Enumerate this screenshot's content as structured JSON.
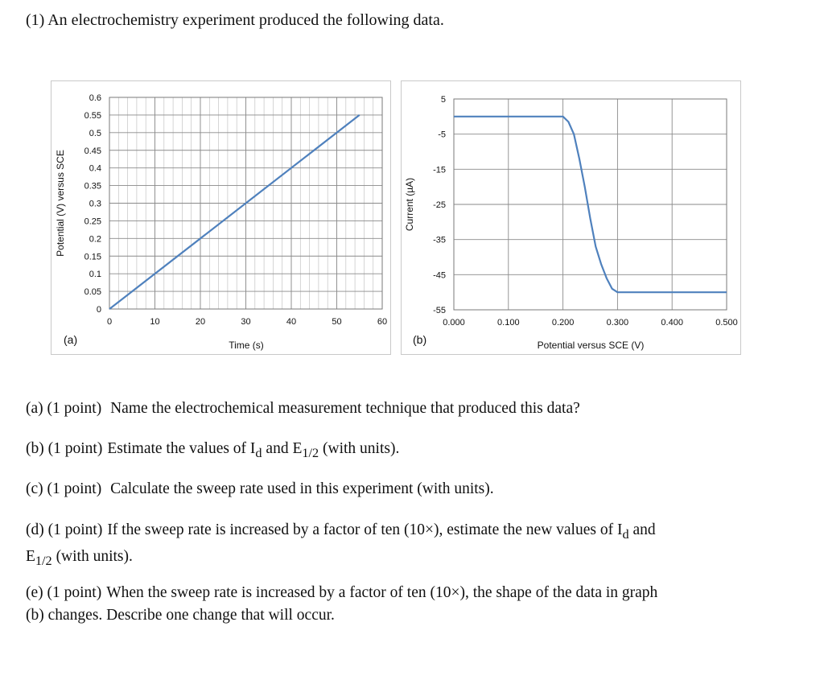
{
  "intro": "(1) An electrochemistry experiment produced the following data.",
  "chart_data": [
    {
      "type": "line",
      "panel_label": "(a)",
      "xlabel": "Time (s)",
      "ylabel": "Potential (V) versus SCE",
      "xlim": [
        0,
        60
      ],
      "ylim": [
        0,
        0.6
      ],
      "x_ticks": [
        "0",
        "10",
        "20",
        "30",
        "40",
        "50",
        "60"
      ],
      "y_ticks": [
        "0",
        "0.05",
        "0.1",
        "0.15",
        "0.2",
        "0.25",
        "0.3",
        "0.35",
        "0.4",
        "0.45",
        "0.5",
        "0.55",
        "0.6"
      ],
      "grid": true,
      "series": [
        {
          "color": "#4f81bd",
          "x": [
            0,
            55
          ],
          "y": [
            0,
            0.55
          ]
        }
      ]
    },
    {
      "type": "line",
      "panel_label": "(b)",
      "xlabel": "Potential versus SCE (V)",
      "ylabel": "Current (µA)",
      "xlim": [
        0,
        0.5
      ],
      "ylim": [
        -55,
        5
      ],
      "x_ticks": [
        "0.000",
        "0.100",
        "0.200",
        "0.300",
        "0.400",
        "0.500"
      ],
      "y_ticks": [
        "5",
        "-5",
        "-15",
        "-25",
        "-35",
        "-45",
        "-55"
      ],
      "grid": true,
      "series": [
        {
          "color": "#4f81bd",
          "x": [
            0.0,
            0.2,
            0.21,
            0.22,
            0.23,
            0.24,
            0.25,
            0.26,
            0.27,
            0.28,
            0.29,
            0.3,
            0.5
          ],
          "y": [
            0,
            0,
            -1.5,
            -5,
            -12,
            -20,
            -29,
            -37,
            -42,
            -46,
            -49,
            -50,
            -50
          ]
        }
      ]
    }
  ],
  "questions": [
    {
      "label": "(a) (1 point)",
      "text": "Name the electrochemical measurement technique that produced this data?"
    },
    {
      "label": "(b) (1 point)",
      "text_parts": [
        "Estimate the values of I",
        "d",
        " and E",
        "1/2",
        " (with units)."
      ]
    },
    {
      "label": "(c) (1 point)",
      "text": "Calculate the sweep rate used in this experiment (with units)."
    },
    {
      "label": "(d) (1 point)",
      "line1_parts": [
        "If the sweep rate is increased by a factor of ten (10×), estimate the new values of I",
        "d",
        " and"
      ],
      "line2_parts": [
        "E",
        "1/2",
        " (with units)."
      ]
    },
    {
      "label": "(e) (1 point)",
      "line1": "When the sweep rate is increased by a factor of ten (10×), the shape of the data in graph",
      "line2": "(b) changes.  Describe one change that will occur."
    }
  ]
}
